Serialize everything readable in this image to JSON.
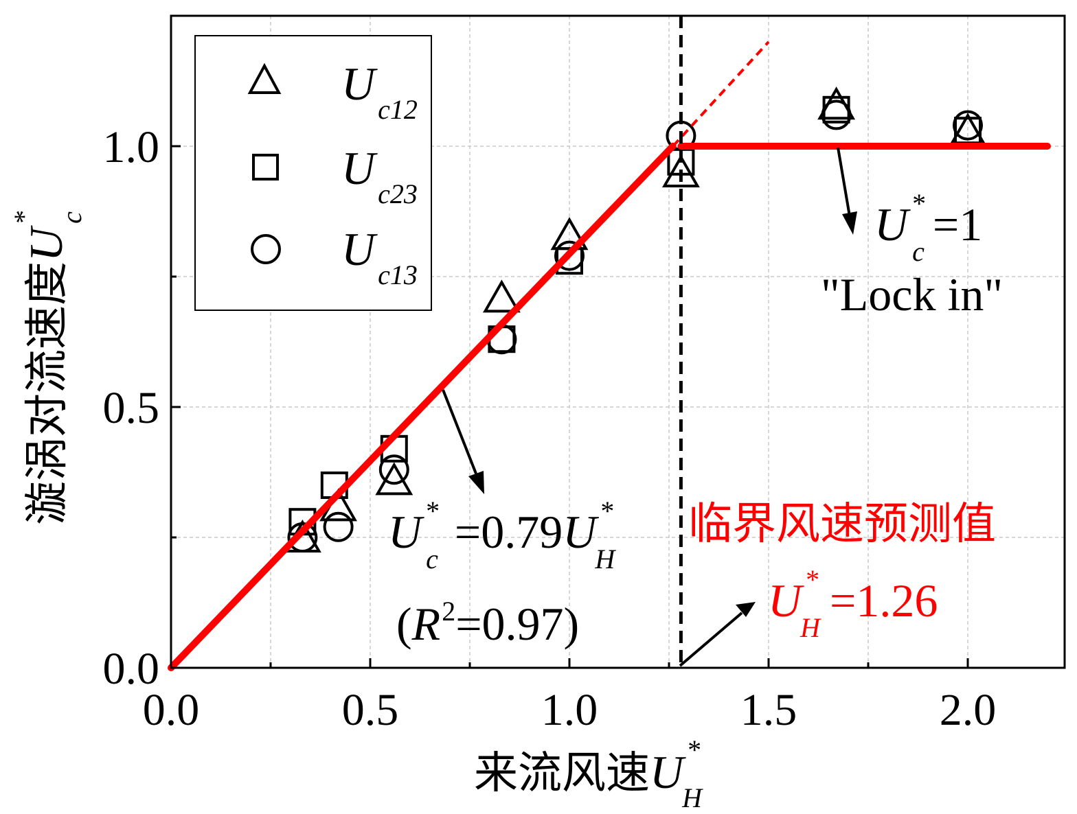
{
  "chart_data": {
    "type": "scatter",
    "xlabel": {
      "main": "来流风速",
      "sym": "U",
      "sub": "H",
      "sup": "*"
    },
    "ylabel": {
      "main": "漩涡对流速度",
      "sym": "U",
      "sub": "c",
      "sup": "*"
    },
    "xlim": [
      0.0,
      2.2
    ],
    "ylim": [
      0.0,
      1.25
    ],
    "xticks": [
      0.0,
      0.5,
      1.0,
      1.5,
      2.0
    ],
    "xtick_labels": [
      "0.0",
      "0.5",
      "1.0",
      "1.5",
      "2.0"
    ],
    "xticks_minor": [
      0.25,
      0.75,
      1.25,
      1.75
    ],
    "yticks": [
      0.0,
      0.5,
      1.0
    ],
    "ytick_labels": [
      "0.0",
      "0.5",
      "1.0"
    ],
    "yticks_minor": [
      0.25,
      0.75
    ],
    "grid": true,
    "legend_position": "top-left",
    "series": [
      {
        "name": "U_c12",
        "label": {
          "sym": "U",
          "sub": "c12"
        },
        "marker": "triangle",
        "x": [
          0.33,
          0.42,
          0.56,
          0.83,
          1.0,
          1.28,
          1.67,
          2.0
        ],
        "y": [
          0.25,
          0.31,
          0.36,
          0.71,
          0.83,
          0.95,
          1.08,
          1.03
        ]
      },
      {
        "name": "U_c23",
        "label": {
          "sym": "U",
          "sub": "c23"
        },
        "marker": "square",
        "x": [
          0.33,
          0.41,
          0.56,
          0.83,
          1.0,
          1.28,
          1.67,
          2.0
        ],
        "y": [
          0.28,
          0.35,
          0.42,
          0.63,
          0.78,
          0.97,
          1.07,
          1.03
        ]
      },
      {
        "name": "U_c13",
        "label": {
          "sym": "U",
          "sub": "c13"
        },
        "marker": "circle",
        "x": [
          0.33,
          0.42,
          0.56,
          0.83,
          1.0,
          1.28,
          1.67,
          2.0
        ],
        "y": [
          0.25,
          0.27,
          0.38,
          0.63,
          0.79,
          1.02,
          1.06,
          1.04
        ]
      }
    ],
    "fit_line": {
      "slope": 0.79,
      "x_range": [
        0.0,
        1.26
      ],
      "color": "#ff0000"
    },
    "fit_extension": {
      "x_range": [
        1.26,
        1.5
      ],
      "color": "#ff0000",
      "style": "dashed"
    },
    "plateau": {
      "y": 1.0,
      "x_range": [
        1.28,
        2.2
      ],
      "color": "#ff0000"
    },
    "critical_line": {
      "x": 1.28,
      "color": "#000000",
      "style": "dashed"
    },
    "annotations": {
      "fit_eq": {
        "lhs_sym": "U",
        "lhs_sub": "c",
        "lhs_sup": "*",
        "mid": "=0.79",
        "rhs_sym": "U",
        "rhs_sub": "H",
        "rhs_sup": "*"
      },
      "r2": {
        "open": "(",
        "sym": "R",
        "sup": "2",
        "rest": "=0.97)"
      },
      "lock_eq": {
        "sym": "U",
        "sub": "c",
        "sup": "*",
        "rest": "=1"
      },
      "lock_text": "\"Lock in\"",
      "critical_title": "临界风速预测值",
      "critical_eq": {
        "sym": "U",
        "sub": "H",
        "sup": "*",
        "rest": "=1.26"
      },
      "critical_color": "#ff0000"
    }
  }
}
